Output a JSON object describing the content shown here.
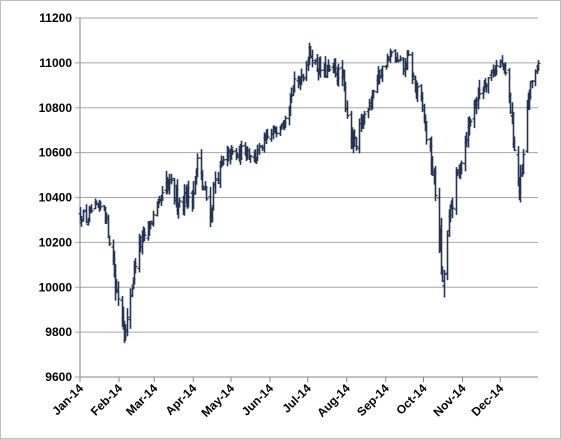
{
  "chart_data": {
    "type": "ohlc",
    "title": "",
    "xlabel": "",
    "ylabel": "",
    "ylim": [
      9600,
      11200
    ],
    "ytick_step": 200,
    "yticks": [
      "9600",
      "9800",
      "10000",
      "10200",
      "10400",
      "10600",
      "10800",
      "11000",
      "11200"
    ],
    "grid": "horizontal",
    "legend": "none",
    "x_tick_labels": [
      "Jan-14",
      "Feb-14",
      "Mar-14",
      "Apr-14",
      "May-14",
      "Jun-14",
      "Jul-14",
      "Aug-14",
      "Sep-14",
      "Oct-14",
      "Nov-14",
      "Dec-14"
    ],
    "x_start": "2014-01-01",
    "x_end": "2014-12-31",
    "bar_color": "#243452",
    "grid_color": "#a6a6a6",
    "anchor_points": [
      [
        "2014-01-02",
        10320,
        90
      ],
      [
        "2014-01-06",
        10300,
        80
      ],
      [
        "2014-01-10",
        10340,
        80
      ],
      [
        "2014-01-15",
        10350,
        80
      ],
      [
        "2014-01-20",
        10360,
        70
      ],
      [
        "2014-01-23",
        10250,
        110
      ],
      [
        "2014-01-27",
        10120,
        130
      ],
      [
        "2014-01-29",
        10000,
        150
      ],
      [
        "2014-02-01",
        9950,
        170
      ],
      [
        "2014-02-04",
        9860,
        200
      ],
      [
        "2014-02-06",
        9790,
        130
      ],
      [
        "2014-02-08",
        9900,
        120
      ],
      [
        "2014-02-12",
        10050,
        120
      ],
      [
        "2014-02-15",
        10150,
        120
      ],
      [
        "2014-02-20",
        10220,
        100
      ],
      [
        "2014-02-28",
        10310,
        100
      ],
      [
        "2014-03-05",
        10370,
        100
      ],
      [
        "2014-03-10",
        10450,
        130
      ],
      [
        "2014-03-15",
        10440,
        150
      ],
      [
        "2014-03-20",
        10380,
        120
      ],
      [
        "2014-03-25",
        10400,
        150
      ],
      [
        "2014-04-01",
        10430,
        160
      ],
      [
        "2014-04-04",
        10560,
        140
      ],
      [
        "2014-04-08",
        10450,
        140
      ],
      [
        "2014-04-12",
        10380,
        150
      ],
      [
        "2014-04-15",
        10330,
        160
      ],
      [
        "2014-04-18",
        10480,
        120
      ],
      [
        "2014-04-25",
        10550,
        120
      ],
      [
        "2014-05-01",
        10600,
        100
      ],
      [
        "2014-05-05",
        10580,
        100
      ],
      [
        "2014-05-12",
        10620,
        100
      ],
      [
        "2014-05-20",
        10580,
        100
      ],
      [
        "2014-05-28",
        10650,
        80
      ],
      [
        "2014-06-05",
        10700,
        80
      ],
      [
        "2014-06-12",
        10760,
        90
      ],
      [
        "2014-06-20",
        10900,
        100
      ],
      [
        "2014-06-28",
        10960,
        100
      ],
      [
        "2014-07-02",
        11050,
        80
      ],
      [
        "2014-07-08",
        10980,
        100
      ],
      [
        "2014-07-15",
        10960,
        100
      ],
      [
        "2014-07-22",
        10970,
        100
      ],
      [
        "2014-07-29",
        10920,
        100
      ],
      [
        "2014-08-01",
        10780,
        150
      ],
      [
        "2014-08-05",
        10650,
        130
      ],
      [
        "2014-08-08",
        10620,
        120
      ],
      [
        "2014-08-12",
        10720,
        120
      ],
      [
        "2014-08-18",
        10820,
        110
      ],
      [
        "2014-08-25",
        10930,
        100
      ],
      [
        "2014-09-01",
        11000,
        80
      ],
      [
        "2014-09-05",
        11040,
        70
      ],
      [
        "2014-09-10",
        11000,
        80
      ],
      [
        "2014-09-15",
        10980,
        90
      ],
      [
        "2014-09-19",
        11020,
        90
      ],
      [
        "2014-09-25",
        10880,
        120
      ],
      [
        "2014-09-30",
        10800,
        120
      ],
      [
        "2014-10-03",
        10680,
        130
      ],
      [
        "2014-10-07",
        10560,
        150
      ],
      [
        "2014-10-10",
        10420,
        180
      ],
      [
        "2014-10-14",
        10200,
        200
      ],
      [
        "2014-10-16",
        9980,
        200
      ],
      [
        "2014-10-18",
        10150,
        200
      ],
      [
        "2014-10-22",
        10330,
        160
      ],
      [
        "2014-10-28",
        10500,
        140
      ],
      [
        "2014-11-03",
        10660,
        130
      ],
      [
        "2014-11-10",
        10820,
        120
      ],
      [
        "2014-11-17",
        10900,
        100
      ],
      [
        "2014-11-24",
        10960,
        100
      ],
      [
        "2014-12-01",
        11000,
        80
      ],
      [
        "2014-12-05",
        10950,
        100
      ],
      [
        "2014-12-09",
        10800,
        140
      ],
      [
        "2014-12-12",
        10620,
        160
      ],
      [
        "2014-12-16",
        10420,
        150
      ],
      [
        "2014-12-18",
        10500,
        150
      ],
      [
        "2014-12-22",
        10800,
        120
      ],
      [
        "2014-12-27",
        10950,
        80
      ],
      [
        "2014-12-31",
        10990,
        60
      ]
    ]
  }
}
